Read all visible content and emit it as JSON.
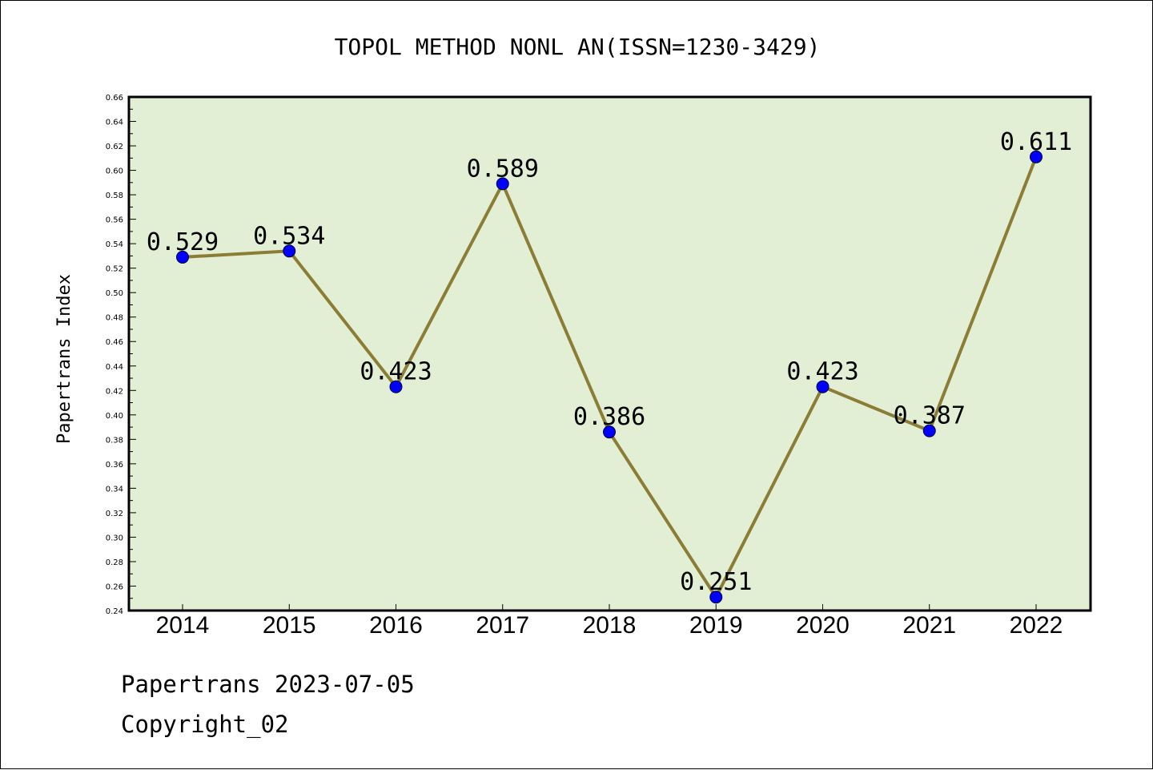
{
  "chart_data": {
    "type": "line",
    "title": "TOPOL METHOD NONL AN(ISSN=1230-3429)",
    "ylabel": "Papertrans Index",
    "xlabel": "",
    "categories": [
      "2014",
      "2015",
      "2016",
      "2017",
      "2018",
      "2019",
      "2020",
      "2021",
      "2022"
    ],
    "series": [
      {
        "values": [
          0.529,
          0.534,
          0.423,
          0.589,
          0.386,
          0.251,
          0.423,
          0.387,
          0.611
        ],
        "labels": [
          "0.529",
          "0.534",
          "0.423",
          "0.589",
          "0.386",
          "0.251",
          "0.423",
          "0.387",
          "0.611"
        ]
      }
    ],
    "ylim": [
      0.24,
      0.66
    ],
    "yticks": [
      "0.24",
      "0.26",
      "0.28",
      "0.30",
      "0.32",
      "0.34",
      "0.36",
      "0.38",
      "0.40",
      "0.42",
      "0.44",
      "0.46",
      "0.48",
      "0.50",
      "0.52",
      "0.54",
      "0.56",
      "0.58",
      "0.60",
      "0.62",
      "0.64",
      "0.66"
    ],
    "grid": false,
    "colors": {
      "plot_background": "#e2efd5",
      "line": "#8b7d35",
      "marker": "#0000ff"
    }
  },
  "footer": {
    "line1": "Papertrans 2023-07-05",
    "line2": "Copyright_02"
  }
}
